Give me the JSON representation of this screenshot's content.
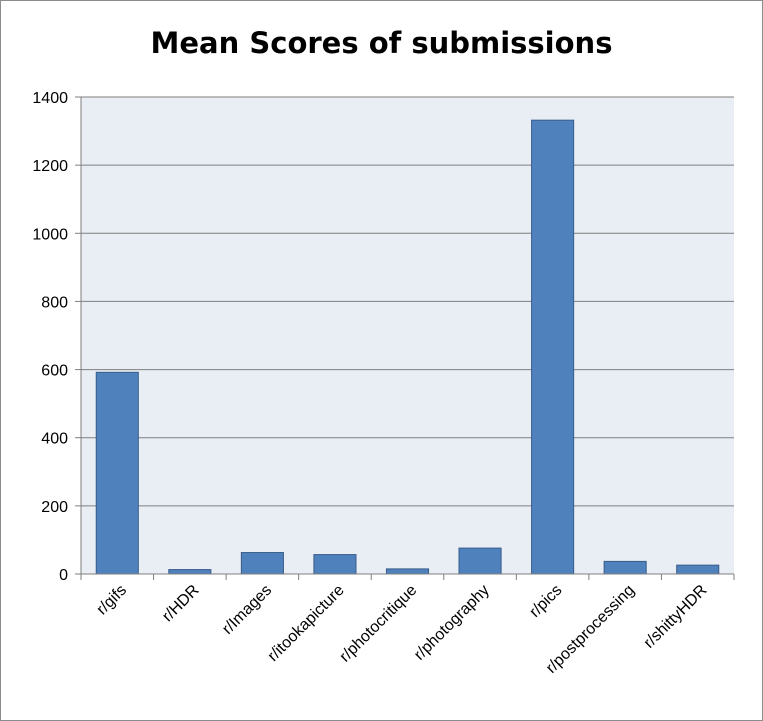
{
  "chart_data": {
    "type": "bar",
    "title": "Mean Scores of submissions",
    "xlabel": "",
    "ylabel": "",
    "categories": [
      "r/gifs",
      "r/HDR",
      "r/Images",
      "r/itookapicture",
      "r/photocritique",
      "r/photography",
      "r/pics",
      "r/postprocessing",
      "r/shittyHDR"
    ],
    "values": [
      592,
      13,
      63,
      57,
      15,
      76,
      1332,
      37,
      26
    ],
    "ylim": [
      0,
      1400
    ],
    "yticks": [
      0,
      200,
      400,
      600,
      800,
      1000,
      1200,
      1400
    ],
    "grid": true,
    "legend": "none",
    "colors": {
      "bar_fill": "#4f81bd",
      "bar_stroke": "#385d8a",
      "plot_background": "#e9edf4",
      "gridline": "#7f7f7f"
    }
  }
}
